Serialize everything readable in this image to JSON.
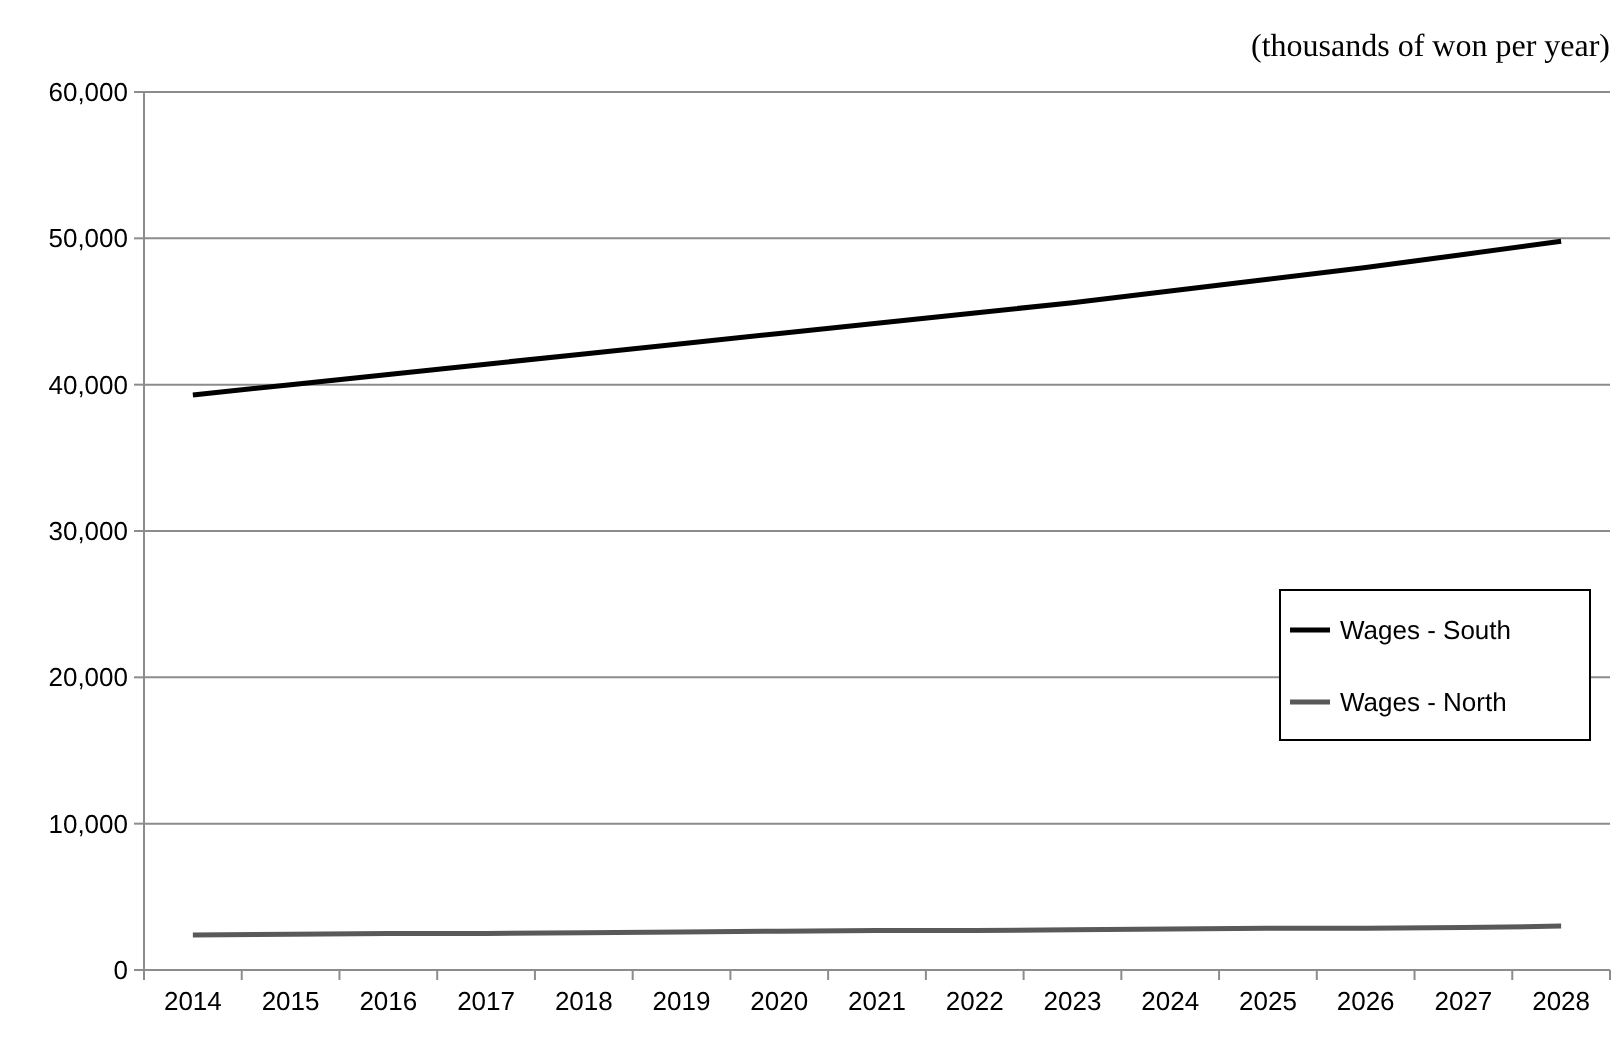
{
  "chart_data": {
    "type": "line",
    "ylabel": "(thousands of won per year)",
    "categories": [
      "2014",
      "2015",
      "2016",
      "2017",
      "2018",
      "2019",
      "2020",
      "2021",
      "2022",
      "2023",
      "2024",
      "2025",
      "2026",
      "2027",
      "2028"
    ],
    "series": [
      {
        "name": "Wages - South",
        "color": "#000000",
        "values": [
          39300,
          40000,
          40700,
          41400,
          42100,
          42800,
          43500,
          44200,
          44900,
          45600,
          46400,
          47200,
          48000,
          48900,
          49800
        ]
      },
      {
        "name": "Wages - North",
        "color": "#595959",
        "values": [
          2400,
          2450,
          2500,
          2500,
          2550,
          2600,
          2650,
          2700,
          2700,
          2750,
          2800,
          2850,
          2850,
          2900,
          3000
        ]
      }
    ],
    "ylim": [
      0,
      60000
    ],
    "yticks": [
      {
        "value": 0,
        "label": "0"
      },
      {
        "value": 10000,
        "label": "10,000"
      },
      {
        "value": 20000,
        "label": "20,000"
      },
      {
        "value": 30000,
        "label": "30,000"
      },
      {
        "value": 40000,
        "label": "40,000"
      },
      {
        "value": 50000,
        "label": "50,000"
      },
      {
        "value": 60000,
        "label": "60,000"
      }
    ],
    "grid": "y",
    "legend": "right",
    "marker": "none",
    "line_style": "solid"
  }
}
